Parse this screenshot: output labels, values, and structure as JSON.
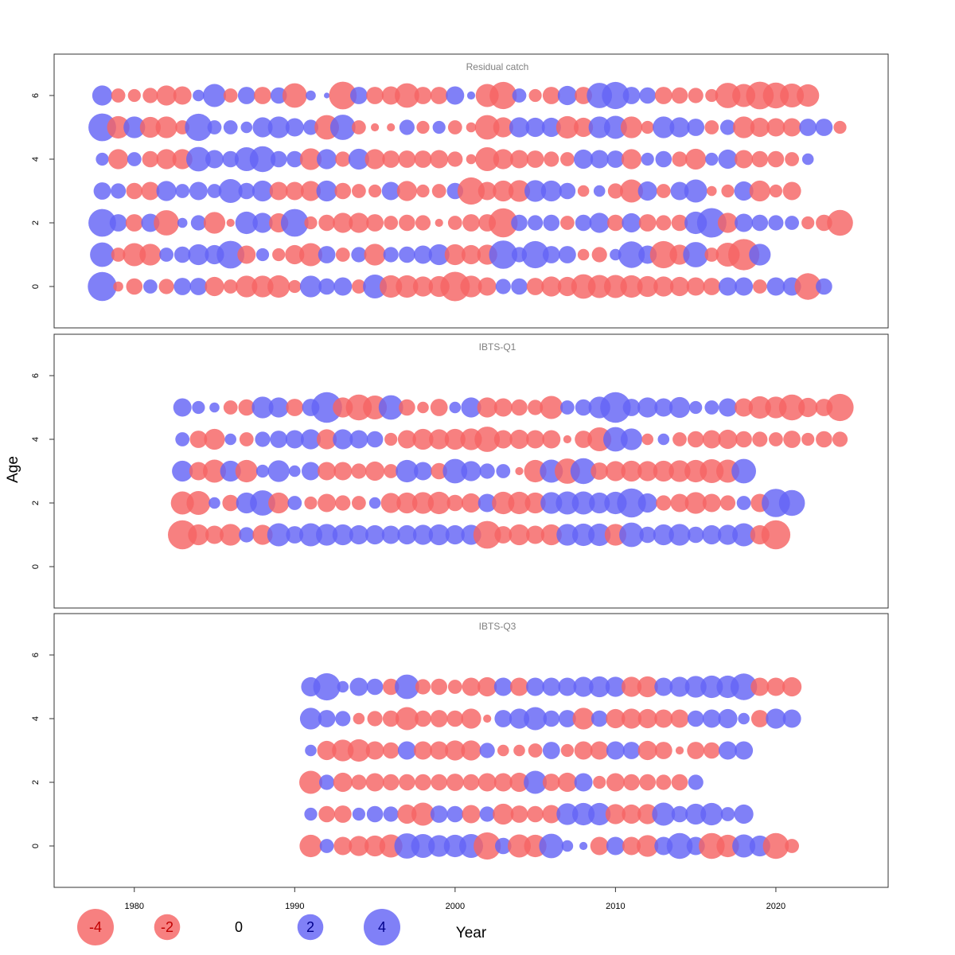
{
  "chart_data": {
    "type": "scatter",
    "ylabel": "Age",
    "xlabel": "Year",
    "x_ticks": [
      1980,
      1990,
      2000,
      2010,
      2020
    ],
    "xlim": [
      1975,
      2027
    ],
    "ylim": [
      -1.3,
      7.3
    ],
    "y_ticks": [
      0,
      2,
      4,
      6
    ],
    "colors": {
      "positive": "#6464F5",
      "negative": "#F56464"
    },
    "size_scale_note_values": [
      -4,
      -2,
      0,
      2,
      4
    ],
    "legend": [
      {
        "label": "-4",
        "value": -4
      },
      {
        "label": "-2",
        "value": -2
      },
      {
        "label": "0",
        "value": 0
      },
      {
        "label": "2",
        "value": 2
      },
      {
        "label": "4",
        "value": 4
      }
    ],
    "panels": [
      {
        "title": "Residual catch",
        "ages": [
          0,
          1,
          2,
          3,
          4,
          5,
          6
        ],
        "start_year": 1978,
        "residuals": {
          "6": [
            1.2,
            -0.6,
            -0.5,
            -0.7,
            -1.2,
            -1.0,
            0.4,
            1.6,
            -0.6,
            0.9,
            -0.9,
            0.8,
            -1.8,
            0.3,
            0.1,
            -2.3,
            0.9,
            -0.9,
            -1.0,
            -1.8,
            -0.9,
            -0.9,
            1.0,
            0.2,
            -1.6,
            -2.2,
            0.6,
            -0.5,
            -0.9,
            1.1,
            -0.9,
            1.9,
            2.2,
            0.9,
            0.8,
            -0.9,
            -0.8,
            -0.7,
            -0.5,
            -1.9,
            -1.6,
            -2.3,
            -2.0,
            -1.7,
            -1.5
          ],
          "5": [
            2.3,
            -1.5,
            1.4,
            -1.3,
            -1.4,
            -0.6,
            2.2,
            0.6,
            0.6,
            0.4,
            1.2,
            1.4,
            1.0,
            0.7,
            -1.8,
            1.9,
            -0.6,
            -0.2,
            -0.2,
            0.7,
            -0.5,
            0.5,
            -0.6,
            -0.3,
            -1.8,
            -1.2,
            1.2,
            1.1,
            1.1,
            -1.5,
            -1.1,
            1.4,
            1.6,
            -1.4,
            -0.5,
            1.4,
            1.2,
            0.9,
            -0.6,
            0.7,
            -1.4,
            -1.1,
            -1.0,
            -1.0,
            0.9,
            0.9,
            -0.5
          ],
          "4": [
            0.5,
            -1.2,
            0.6,
            -0.8,
            -1.2,
            -1.2,
            1.8,
            1.0,
            0.8,
            1.7,
            2.0,
            0.8,
            0.8,
            -1.4,
            1.2,
            -0.7,
            1.3,
            -1.2,
            -0.9,
            -0.9,
            -0.9,
            -1.0,
            -0.7,
            -0.3,
            -1.7,
            -1.2,
            -1.0,
            -0.9,
            -0.7,
            -0.6,
            1.1,
            1.0,
            0.9,
            -1.2,
            0.5,
            0.8,
            -0.7,
            -1.3,
            0.5,
            1.1,
            -1.0,
            -0.8,
            -0.8,
            -0.6,
            0.4
          ],
          "3": [
            0.9,
            0.7,
            -0.8,
            -1.0,
            1.2,
            0.6,
            1.0,
            0.6,
            1.7,
            0.8,
            1.3,
            -1.0,
            -1.0,
            -1.2,
            1.3,
            -0.8,
            -0.6,
            -0.5,
            1.0,
            -1.2,
            -0.5,
            -0.6,
            0.8,
            -2.2,
            -1.0,
            -1.3,
            -1.4,
            1.4,
            1.3,
            0.8,
            -0.4,
            0.4,
            -0.7,
            -1.6,
            1.1,
            -0.6,
            1.0,
            1.6,
            -0.3,
            -0.5,
            1.1,
            -1.3,
            -0.5,
            -1.0
          ],
          "2": [
            2.3,
            0.9,
            -0.9,
            1.0,
            -1.9,
            0.3,
            0.7,
            -1.4,
            -0.2,
            1.5,
            1.2,
            -1.1,
            2.3,
            -0.5,
            -0.8,
            -1.2,
            -1.2,
            -0.9,
            -0.6,
            -0.8,
            -0.7,
            -0.2,
            -0.6,
            -0.9,
            -0.9,
            -2.5,
            0.8,
            0.7,
            0.8,
            -0.6,
            0.8,
            1.2,
            -0.8,
            1.1,
            -0.9,
            -0.7,
            -0.8,
            1.5,
            2.6,
            -1.2,
            1.0,
            0.8,
            0.7,
            0.6,
            -0.5,
            -0.8,
            -2.0
          ],
          "1": [
            1.8,
            -0.6,
            -1.6,
            -1.4,
            0.6,
            0.8,
            1.3,
            1.1,
            2.3,
            -1.0,
            0.5,
            -0.5,
            -1.1,
            -1.6,
            0.9,
            -0.6,
            0.7,
            -1.4,
            0.7,
            0.8,
            1.0,
            1.3,
            -1.3,
            -1.1,
            -1.2,
            2.4,
            0.7,
            2.2,
            0.9,
            0.9,
            -0.4,
            -0.7,
            0.4,
            2.1,
            1.0,
            -2.2,
            -1.2,
            1.9,
            -0.6,
            -1.7,
            -2.9,
            1.4
          ],
          "0": [
            2.5,
            -0.3,
            -0.8,
            0.6,
            -0.7,
            0.9,
            0.9,
            -1.1,
            -0.6,
            -1.4,
            -1.4,
            -1.5,
            -0.5,
            1.4,
            0.8,
            1.0,
            -0.6,
            1.7,
            -1.5,
            -1.5,
            -1.2,
            -1.3,
            -2.6,
            -1.4,
            -1.0,
            0.7,
            0.8,
            -0.9,
            -1.2,
            -1.1,
            -1.8,
            -1.6,
            -1.6,
            -1.5,
            -1.3,
            -1.2,
            -1.1,
            -1.0,
            -0.9,
            1.0,
            1.0,
            -0.6,
            1.0,
            1.0,
            -2.1,
            0.8
          ]
        }
      },
      {
        "title": "IBTS-Q1",
        "ages": [
          1,
          2,
          3,
          4,
          5
        ],
        "start_year": 1983,
        "residuals": {
          "5": [
            1.0,
            0.5,
            0.3,
            -0.6,
            -0.8,
            1.4,
            1.2,
            -0.9,
            0.9,
            2.8,
            -1.2,
            -2.0,
            -1.7,
            1.8,
            -0.8,
            -0.4,
            -0.9,
            0.4,
            1.2,
            -1.2,
            -1.0,
            -0.8,
            -0.7,
            -1.6,
            0.6,
            0.8,
            1.4,
            2.8,
            0.9,
            1.2,
            1.0,
            1.3,
            0.5,
            0.6,
            1.0,
            -1.0,
            -1.5,
            -1.4,
            -2.0,
            -1.1,
            -0.9,
            -2.2
          ],
          "4": [
            0.6,
            -0.9,
            -1.3,
            0.4,
            -0.6,
            0.7,
            0.9,
            1.0,
            1.2,
            -1.2,
            1.2,
            1.0,
            0.8,
            -0.5,
            -1.0,
            -1.3,
            -1.2,
            -1.3,
            -1.4,
            -1.9,
            -1.0,
            -1.1,
            -1.0,
            -1.0,
            -0.2,
            -0.9,
            -1.7,
            1.8,
            1.4,
            -0.4,
            0.4,
            -0.6,
            -0.8,
            -1.0,
            -1.1,
            -0.8,
            -0.7,
            -0.6,
            -0.9,
            -0.5,
            -0.8,
            -0.7
          ],
          "3": [
            1.3,
            -1.0,
            -1.6,
            1.3,
            -1.5,
            0.5,
            1.4,
            0.4,
            1.0,
            -1.0,
            -1.0,
            -0.7,
            -1.1,
            -0.6,
            1.5,
            1.0,
            -0.8,
            1.8,
            1.2,
            0.7,
            0.6,
            -0.2,
            -1.5,
            1.6,
            -1.9,
            2.0,
            -0.9,
            -1.2,
            -1.3,
            -1.2,
            -1.3,
            -1.4,
            -1.5,
            -1.7,
            -1.6,
            1.8
          ],
          "2": [
            -1.6,
            -1.7,
            0.4,
            -0.8,
            1.3,
            1.9,
            -1.3,
            0.6,
            -0.5,
            -1.0,
            -0.7,
            -0.6,
            0.4,
            -1.2,
            -1.3,
            -1.4,
            -1.5,
            -0.8,
            -1.1,
            1.0,
            -1.5,
            -1.5,
            -1.3,
            1.4,
            1.6,
            1.6,
            1.3,
            1.5,
            2.5,
            1.1,
            -0.7,
            -1.0,
            -1.4,
            -1.0,
            -0.7,
            0.6,
            -1.0,
            2.4,
            2.0
          ],
          "1": [
            -2.5,
            -1.3,
            -1.0,
            -1.4,
            0.7,
            -1.2,
            1.6,
            0.9,
            1.6,
            1.4,
            1.3,
            1.1,
            1.1,
            1.0,
            1.1,
            1.2,
            1.3,
            1.1,
            1.2,
            -2.3,
            -0.9,
            -1.3,
            -1.0,
            -1.3,
            1.4,
            1.5,
            1.5,
            -1.4,
            1.8,
            0.8,
            1.3,
            1.4,
            0.8,
            1.1,
            1.2,
            1.6,
            -1.1,
            -2.5
          ]
        }
      },
      {
        "title": "IBTS-Q3",
        "ages": [
          0,
          1,
          2,
          3,
          4,
          5
        ],
        "start_year": 1991,
        "residuals": {
          "5": [
            1.1,
            2.2,
            0.4,
            1.0,
            0.8,
            -0.8,
            1.8,
            -0.7,
            -0.8,
            -0.6,
            -1.0,
            -1.1,
            1.0,
            -1.0,
            1.0,
            1.0,
            1.0,
            1.2,
            1.3,
            1.2,
            -1.2,
            -1.3,
            1.0,
            1.2,
            1.4,
            1.5,
            1.5,
            2.1,
            -1.0,
            -1.0,
            -1.1
          ],
          "4": [
            1.4,
            0.9,
            0.7,
            -0.4,
            -0.7,
            -0.8,
            -1.6,
            -0.8,
            -0.9,
            -0.8,
            -1.2,
            -0.2,
            0.9,
            1.2,
            1.6,
            0.8,
            0.9,
            -1.4,
            0.8,
            -1.1,
            -1.2,
            -1.1,
            -1.0,
            -1.0,
            0.8,
            1.0,
            1.1,
            0.4,
            -0.9,
            1.2,
            1.0
          ],
          "3": [
            0.4,
            -1.1,
            -1.4,
            -1.5,
            -1.0,
            -0.8,
            1.0,
            -1.0,
            -1.0,
            -1.2,
            -1.2,
            0.7,
            -0.4,
            -0.4,
            -0.6,
            0.9,
            -0.5,
            -1.0,
            -1.0,
            1.0,
            0.9,
            -1.1,
            -0.9,
            -0.2,
            -0.9,
            -0.8,
            1.0,
            1.0
          ],
          "2": [
            -1.6,
            0.7,
            -1.1,
            -0.7,
            -1.0,
            -0.8,
            -0.8,
            -0.8,
            -0.8,
            -0.9,
            -0.8,
            -1.0,
            -1.0,
            -1.1,
            1.6,
            -0.9,
            -1.1,
            1.0,
            -0.5,
            -1.0,
            -0.8,
            -0.8,
            -0.7,
            -0.8,
            0.7
          ],
          "1": [
            0.5,
            -0.8,
            -0.9,
            0.5,
            0.8,
            0.7,
            -1.1,
            -1.6,
            0.9,
            0.8,
            -1.0,
            0.7,
            -1.3,
            -0.9,
            -0.8,
            -1.0,
            1.4,
            1.5,
            1.5,
            -1.2,
            -1.1,
            -1.2,
            1.6,
            0.8,
            1.3,
            1.5,
            0.6,
            1.1
          ],
          "0": [
            -1.5,
            0.6,
            -1.0,
            -1.2,
            -1.3,
            -1.6,
            1.9,
            1.7,
            1.4,
            1.5,
            1.7,
            -2.2,
            0.8,
            -1.6,
            -1.5,
            1.8,
            0.4,
            0.2,
            -1.0,
            1.0,
            -1.0,
            -1.4,
            1.0,
            2.0,
            1.0,
            -2.0,
            -1.5,
            1.6,
            1.3,
            -2.0,
            -0.6
          ]
        }
      }
    ]
  }
}
